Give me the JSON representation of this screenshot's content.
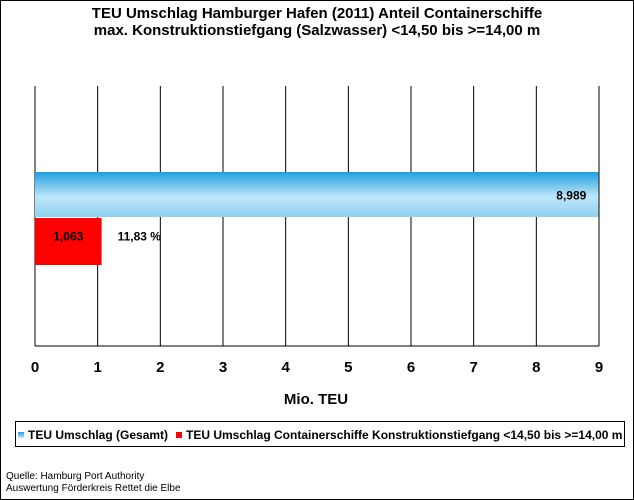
{
  "title_lines": [
    "TEU Umschlag Hamburger Hafen (2011) Anteil Containerschiffe",
    "max. Konstruktionstiefgang (Salzwasser) <14,50 bis >=14,00 m"
  ],
  "source_lines": [
    "Quelle: Hamburg Port Authority",
    "Auswertung Förderkreis Rettet die Elbe"
  ],
  "colors": {
    "total_bar_top": "#1ea0e0",
    "total_bar_mid": "#bfe6fa",
    "total_bar_bottom": "#8fd0f0",
    "subset_bar": "#ff0000",
    "grid": "#000000"
  },
  "chart_data": {
    "type": "bar",
    "orientation": "horizontal",
    "xlabel": "Mio. TEU",
    "xlim": [
      0,
      9
    ],
    "xticks": [
      "0",
      "1",
      "2",
      "3",
      "4",
      "5",
      "6",
      "7",
      "8",
      "9"
    ],
    "grid": "vertical",
    "legend_position": "bottom",
    "series": [
      {
        "name": "TEU Umschlag (Gesamt)",
        "value": 8.989,
        "label": "8,989"
      },
      {
        "name": "TEU Umschlag Containerschiffe Konstruktionstiefgang <14,50 bis >=14,00 m",
        "value": 1.063,
        "label": "1,063",
        "share_label": "11,83 %"
      }
    ]
  }
}
